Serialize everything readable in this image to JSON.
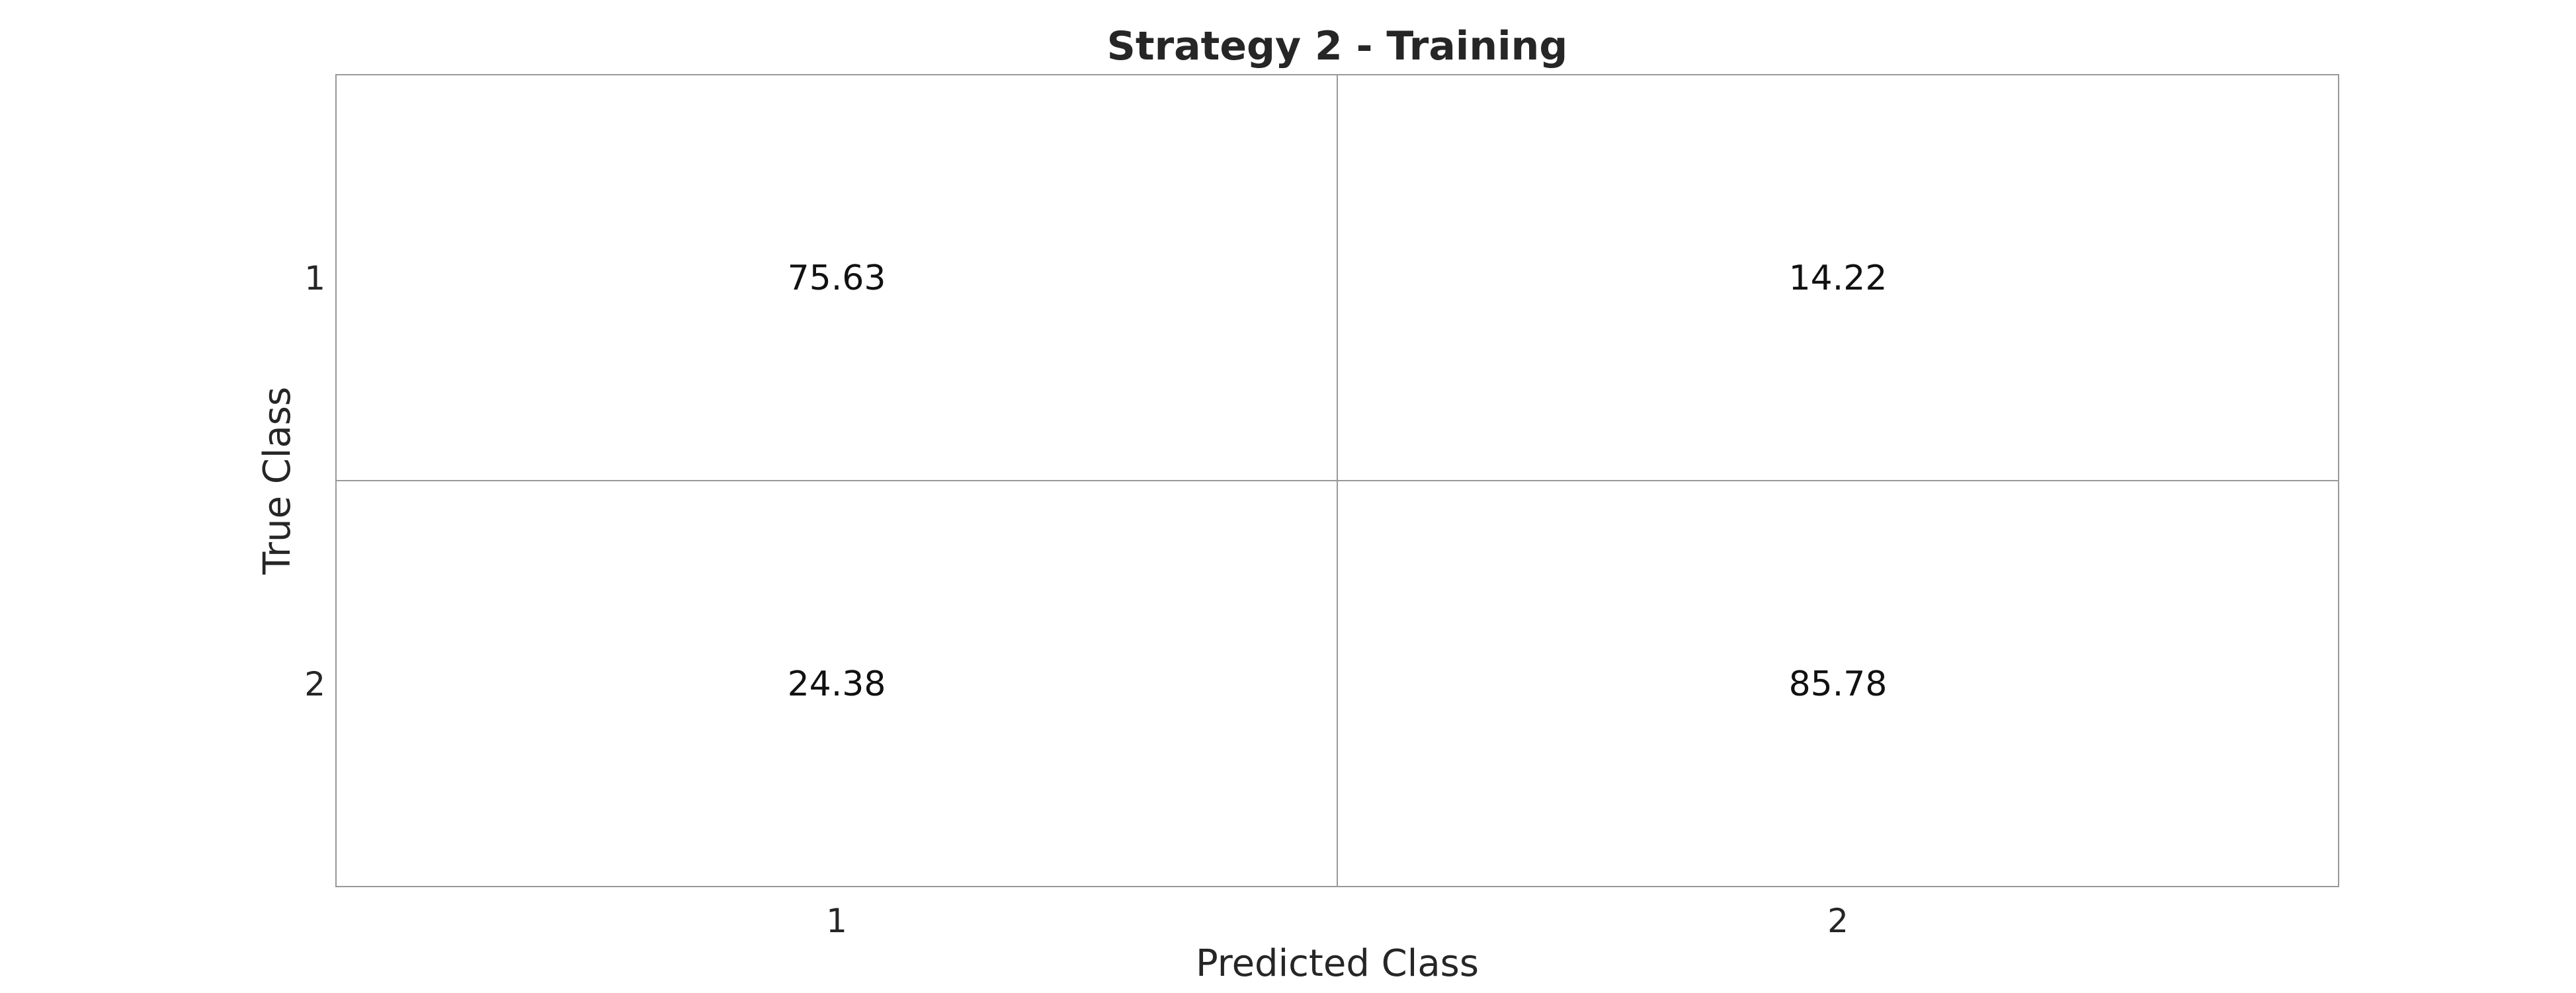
{
  "chart_data": {
    "type": "heatmap",
    "title": "Strategy 2 - Training",
    "xlabel": "Predicted Class",
    "ylabel": "True Class",
    "x_categories": [
      "1",
      "2"
    ],
    "y_categories": [
      "1",
      "2"
    ],
    "values": [
      [
        75.63,
        14.22
      ],
      [
        24.38,
        85.78
      ]
    ],
    "value_labels": [
      [
        "75.63",
        "14.22"
      ],
      [
        "24.38",
        "85.78"
      ]
    ],
    "grid": true,
    "colors": {
      "cell_fill": "#ffffff",
      "grid_line": "#999999",
      "text": "#262626",
      "value_text": "#111111"
    }
  }
}
